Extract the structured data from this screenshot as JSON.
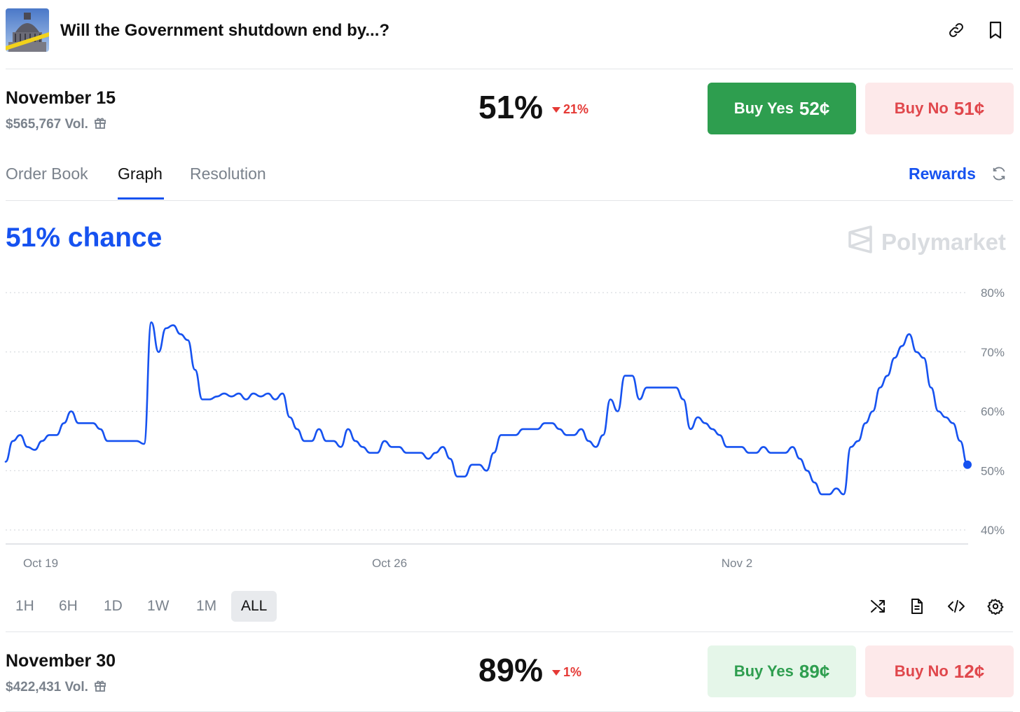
{
  "header": {
    "title": "Will the Government shutdown end by...?",
    "link_icon": "link-icon",
    "bookmark_icon": "bookmark-icon"
  },
  "markets": [
    {
      "date": "November 15",
      "volume": "$565,767 Vol.",
      "percent": "51%",
      "change": "21%",
      "yes_label": "Buy Yes",
      "yes_price": "52¢",
      "no_label": "Buy No",
      "no_price": "51¢"
    },
    {
      "date": "November 30",
      "volume": "$422,431 Vol.",
      "percent": "89%",
      "change": "1%",
      "yes_label": "Buy Yes",
      "yes_price": "89¢",
      "no_label": "Buy No",
      "no_price": "12¢"
    }
  ],
  "tabs": [
    {
      "label": "Order Book"
    },
    {
      "label": "Graph"
    },
    {
      "label": "Resolution"
    }
  ],
  "active_tab": "Graph",
  "rewards_label": "Rewards",
  "chance_label": "51% chance",
  "brand": "Polymarket",
  "ranges": [
    "1H",
    "6H",
    "1D",
    "1W",
    "1M",
    "ALL"
  ],
  "active_range": "ALL",
  "colors": {
    "accent": "#1652f0",
    "yes": "#2e9e4f",
    "no": "#e0474c",
    "down": "#e53935"
  },
  "chart_data": {
    "type": "line",
    "series": [
      {
        "values": [
          51.5,
          55,
          56,
          54,
          53.5,
          55,
          56,
          56,
          58,
          60,
          58,
          58,
          58,
          57,
          55,
          55,
          55,
          55,
          55,
          54.5,
          75,
          70,
          74,
          74.5,
          73,
          72,
          67,
          62,
          62,
          62.5,
          63,
          62.5,
          63,
          62,
          63,
          62.5,
          63,
          62,
          63,
          59,
          57,
          55,
          55,
          57,
          55,
          55,
          54,
          57,
          55,
          54,
          53,
          53,
          55,
          54,
          54,
          53,
          53,
          53,
          52,
          53,
          54,
          52,
          49,
          49,
          51,
          51,
          50,
          53,
          56,
          56,
          56,
          57,
          57,
          57,
          58,
          58,
          57,
          56,
          56,
          57,
          55,
          54,
          56,
          62,
          60,
          66,
          66,
          62,
          64,
          64,
          64,
          64,
          64,
          62,
          57,
          59,
          58,
          57,
          56,
          54,
          54,
          54,
          53,
          53,
          54,
          53,
          53,
          53,
          54,
          52,
          50,
          48,
          46,
          46,
          47,
          46,
          54,
          55,
          58,
          60,
          64,
          66,
          69,
          71,
          73,
          70,
          69,
          64,
          60,
          59,
          58,
          55,
          51
        ],
        "color": "#1652f0"
      }
    ],
    "x_ticks": [
      "Oct 19",
      "Oct 26",
      "Nov 2"
    ],
    "y_ticks": [
      "40%",
      "50%",
      "60%",
      "70%",
      "80%"
    ],
    "ylim": [
      40,
      80
    ],
    "last_value": 51,
    "grid": true
  }
}
